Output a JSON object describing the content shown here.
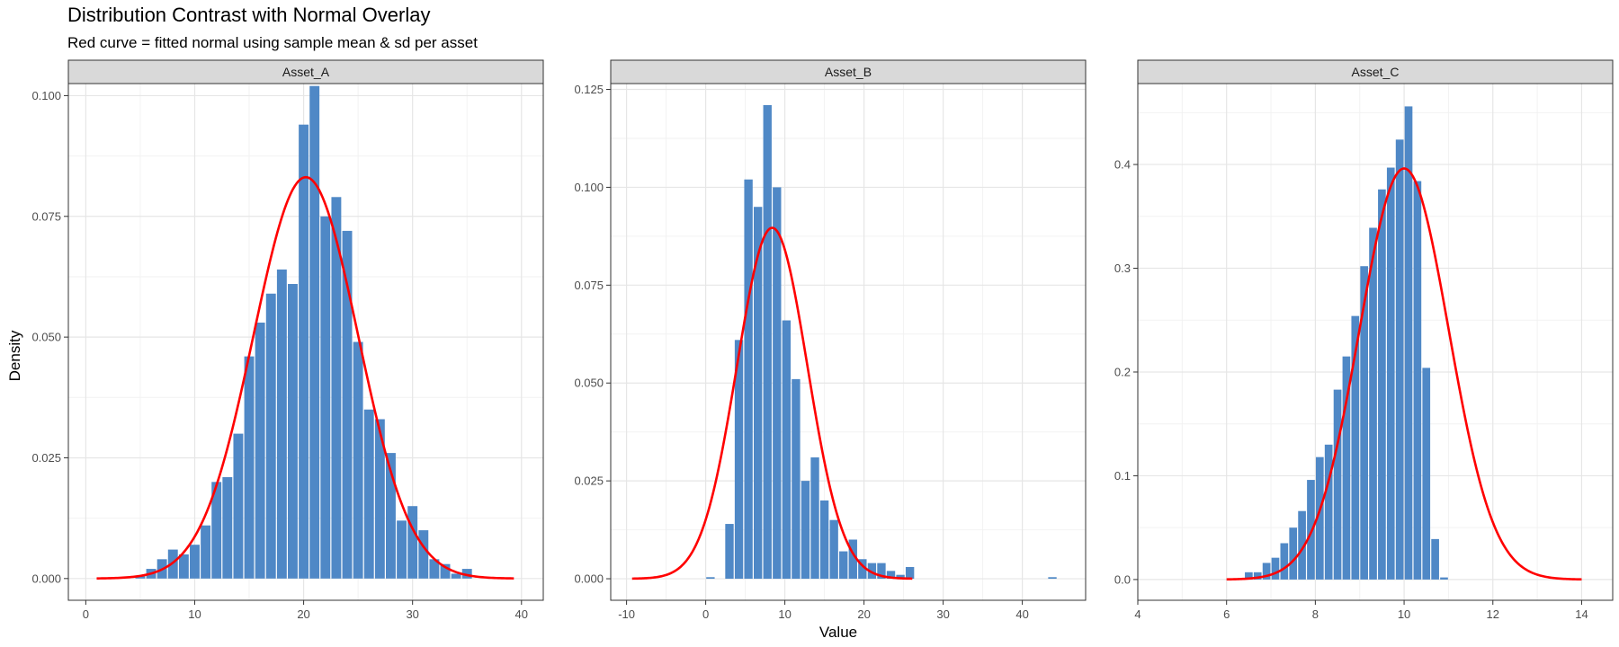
{
  "chart_data": {
    "type": "bar",
    "title": "Distribution Contrast with Normal Overlay",
    "subtitle": "Red curve = fitted normal using sample mean & sd per asset",
    "xlabel": "Value",
    "ylabel": "Density",
    "grid": true,
    "bar_color": "#4F88C6",
    "curve_color": "#FF0000",
    "panels": [
      {
        "name": "Asset_A",
        "xlim": [
          -1.6,
          42.0
        ],
        "ylim": [
          -0.0045,
          0.1025
        ],
        "xticks": [
          0,
          10,
          20,
          30,
          40
        ],
        "yticks": [
          0.0,
          0.025,
          0.05,
          0.075,
          0.1
        ],
        "ytick_labels": [
          "0.000",
          "0.025",
          "0.050",
          "0.075",
          "0.100"
        ],
        "bins": {
          "start": 4.5,
          "width": 1,
          "values": [
            0.0005,
            0.002,
            0.004,
            0.006,
            0.005,
            0.007,
            0.011,
            0.02,
            0.021,
            0.03,
            0.046,
            0.053,
            0.059,
            0.064,
            0.061,
            0.094,
            0.102,
            0.075,
            0.079,
            0.072,
            0.049,
            0.035,
            0.033,
            0.026,
            0.012,
            0.015,
            0.01,
            0.004,
            0.003,
            0.001,
            0.002
          ]
        },
        "normal": {
          "mean": 20.2,
          "sd": 4.8,
          "xrange": [
            1,
            39.3
          ]
        }
      },
      {
        "name": "Asset_B",
        "xlim": [
          -12.0,
          48.0
        ],
        "ylim": [
          -0.0055,
          0.1265
        ],
        "xticks": [
          -10,
          0,
          10,
          20,
          30,
          40
        ],
        "yticks": [
          0.0,
          0.025,
          0.05,
          0.075,
          0.1,
          0.125
        ],
        "ytick_labels": [
          "0.000",
          "0.025",
          "0.050",
          "0.075",
          "0.100",
          "0.125"
        ],
        "bins": {
          "start": 0,
          "width": 1.2,
          "values": [
            0.0004,
            0,
            0.014,
            0.061,
            0.102,
            0.095,
            0.121,
            0.1,
            0.066,
            0.051,
            0.025,
            0.031,
            0.02,
            0.015,
            0.007,
            0.01,
            0.005,
            0.004,
            0.004,
            0.002,
            0.001,
            0.003,
            0,
            0,
            0,
            0,
            0,
            0,
            0,
            0,
            0,
            0,
            0,
            0,
            0,
            0,
            0.0004
          ]
        },
        "normal": {
          "mean": 8.4,
          "sd": 4.45,
          "xrange": [
            -9.3,
            26.1
          ]
        }
      },
      {
        "name": "Asset_C",
        "xlim": [
          4.0,
          14.7
        ],
        "ylim": [
          -0.02,
          0.478
        ],
        "xticks": [
          4,
          6,
          8,
          10,
          12,
          14
        ],
        "yticks": [
          0.0,
          0.1,
          0.2,
          0.3,
          0.4
        ],
        "ytick_labels": [
          "0.0",
          "0.1",
          "0.2",
          "0.3",
          "0.4"
        ],
        "bins": {
          "start": 6.4,
          "width": 0.2,
          "values": [
            0.007,
            0.007,
            0.016,
            0.021,
            0.035,
            0.05,
            0.066,
            0.096,
            0.118,
            0.13,
            0.183,
            0.215,
            0.254,
            0.302,
            0.339,
            0.376,
            0.397,
            0.424,
            0.456,
            0.384,
            0.204,
            0.039,
            0.002
          ]
        },
        "normal": {
          "mean": 10.0,
          "sd": 1.007,
          "xrange": [
            6.0,
            14.0
          ]
        }
      }
    ]
  }
}
